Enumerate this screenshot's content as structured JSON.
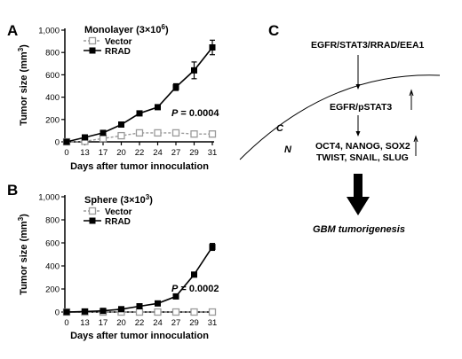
{
  "panel_letters": {
    "a": "A",
    "b": "B",
    "c": "C"
  },
  "chart_data": [
    {
      "type": "line",
      "panel": "A",
      "legend_title_prefix": "Monolayer (3×10",
      "legend_title_exp": "6",
      "legend_title_suffix": ")",
      "xlabel": "Days after tumor innoculation",
      "ylabel": "Tumor size (mm",
      "ylabel_exp": "3",
      "ylabel_suffix": ")",
      "x_ticks": [
        "0",
        "13",
        "17",
        "20",
        "22",
        "24",
        "27",
        "29",
        "31"
      ],
      "y_ticks": [
        "0",
        "200",
        "400",
        "600",
        "800",
        "1,000"
      ],
      "ylim": [
        0,
        1000
      ],
      "p_label": "P",
      "p_value": " = 0.0004",
      "series": [
        {
          "name": "Vector",
          "marker": "open-square",
          "color": "#9a9a9a",
          "dashed": true,
          "values": [
            0,
            5,
            30,
            55,
            80,
            80,
            80,
            70,
            70
          ],
          "errors": [
            0,
            0,
            0,
            0,
            0,
            0,
            0,
            0,
            0
          ]
        },
        {
          "name": "RRAD",
          "marker": "filled-square",
          "color": "#000000",
          "dashed": false,
          "values": [
            0,
            40,
            80,
            155,
            255,
            310,
            490,
            640,
            845
          ],
          "errors": [
            0,
            0,
            0,
            0,
            15,
            20,
            30,
            75,
            65
          ]
        }
      ]
    },
    {
      "type": "line",
      "panel": "B",
      "legend_title_prefix": "Sphere (3×10",
      "legend_title_exp": "3",
      "legend_title_suffix": ")",
      "xlabel": "Days after tumor innoculation",
      "ylabel": "Tumor size (mm",
      "ylabel_exp": "3",
      "ylabel_suffix": ")",
      "x_ticks": [
        "0",
        "13",
        "17",
        "20",
        "22",
        "24",
        "27",
        "29",
        "31"
      ],
      "y_ticks": [
        "0",
        "200",
        "400",
        "600",
        "800",
        "1,000"
      ],
      "ylim": [
        0,
        1000
      ],
      "p_label": "P",
      "p_value": " = 0.0002",
      "series": [
        {
          "name": "Vector",
          "marker": "open-square",
          "color": "#9a9a9a",
          "dashed": true,
          "values": [
            0,
            0,
            0,
            0,
            0,
            0,
            0,
            0,
            0
          ],
          "errors": [
            0,
            0,
            0,
            0,
            0,
            0,
            0,
            0,
            0
          ]
        },
        {
          "name": "RRAD",
          "marker": "filled-square",
          "color": "#000000",
          "dashed": false,
          "values": [
            0,
            5,
            10,
            25,
            50,
            75,
            135,
            325,
            565
          ],
          "errors": [
            0,
            0,
            0,
            0,
            0,
            0,
            0,
            0,
            30
          ]
        }
      ]
    }
  ],
  "diagram": {
    "membrane_label": "C",
    "nucleus_label": "N",
    "top_text": "EGFR/STAT3/RRAD/EEA1",
    "mid_text": "EGFR/pSTAT3",
    "gene_line1": "OCT4, NANOG, SOX2",
    "gene_line2": "TWIST, SNAIL, SLUG",
    "outcome": "GBM tumorigenesis"
  }
}
